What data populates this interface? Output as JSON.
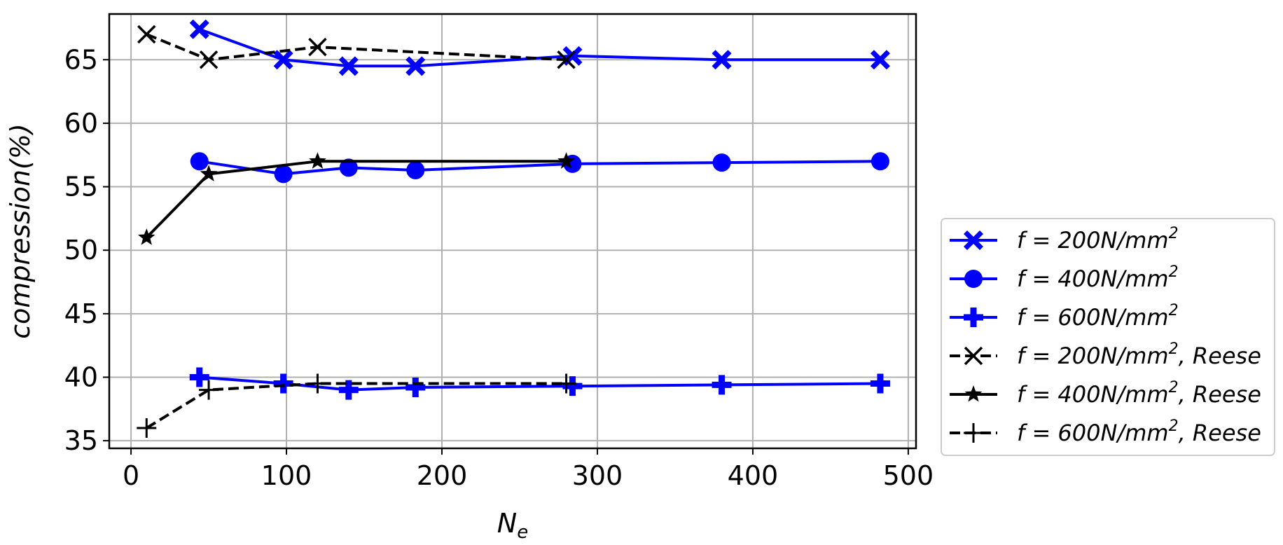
{
  "chart_data": {
    "type": "line",
    "xlabel": "N",
    "xlabel_sub": "e",
    "ylabel": "compression(%)",
    "xlim": [
      -14,
      505
    ],
    "ylim": [
      34.4,
      68.6
    ],
    "xticks": [
      0,
      100,
      200,
      300,
      400,
      500
    ],
    "yticks": [
      35,
      40,
      45,
      50,
      55,
      60,
      65
    ],
    "grid": true,
    "legend_position": "lower-right, outside plot",
    "series": [
      {
        "name": "f = 200N/mm², ",
        "legend_prefix": "f = 200N/mm",
        "legend_suffix": "",
        "color": "#0000ff",
        "marker": "X",
        "linestyle": "solid",
        "x": [
          44,
          98,
          140,
          183,
          284,
          380,
          482
        ],
        "y": [
          67.4,
          65.0,
          64.5,
          64.5,
          65.3,
          65.0,
          65.0
        ]
      },
      {
        "name": "f = 400N/mm²",
        "legend_prefix": "f = 400N/mm",
        "legend_suffix": "",
        "color": "#0000ff",
        "marker": "o",
        "linestyle": "solid",
        "x": [
          44,
          98,
          140,
          183,
          284,
          380,
          482
        ],
        "y": [
          57.0,
          56.0,
          56.5,
          56.3,
          56.8,
          56.9,
          57.0
        ]
      },
      {
        "name": "f = 600N/mm²",
        "legend_prefix": "f = 600N/mm",
        "legend_suffix": "",
        "color": "#0000ff",
        "marker": "P",
        "linestyle": "solid",
        "x": [
          44,
          98,
          140,
          183,
          284,
          380,
          482
        ],
        "y": [
          40.0,
          39.5,
          39.0,
          39.2,
          39.3,
          39.4,
          39.5
        ]
      },
      {
        "name": "f = 200N/mm², Reese",
        "legend_prefix": "f = 200N/mm",
        "legend_suffix": ", Reese",
        "color": "#000000",
        "marker": "x",
        "linestyle": "dashed",
        "x": [
          10,
          50,
          120,
          280
        ],
        "y": [
          67.0,
          65.0,
          66.0,
          65.0
        ]
      },
      {
        "name": "f = 400N/mm², Reese",
        "legend_prefix": "f = 400N/mm",
        "legend_suffix": ", Reese",
        "color": "#000000",
        "marker": "*",
        "linestyle": "solid",
        "x": [
          10,
          50,
          120,
          280
        ],
        "y": [
          51.0,
          56.0,
          57.0,
          57.0
        ]
      },
      {
        "name": "f = 600N/mm², Reese",
        "legend_prefix": "f = 600N/mm",
        "legend_suffix": ", Reese",
        "color": "#000000",
        "marker": "+",
        "linestyle": "dashed",
        "x": [
          10,
          50,
          120,
          280
        ],
        "y": [
          36.0,
          39.0,
          39.5,
          39.5
        ]
      }
    ]
  }
}
